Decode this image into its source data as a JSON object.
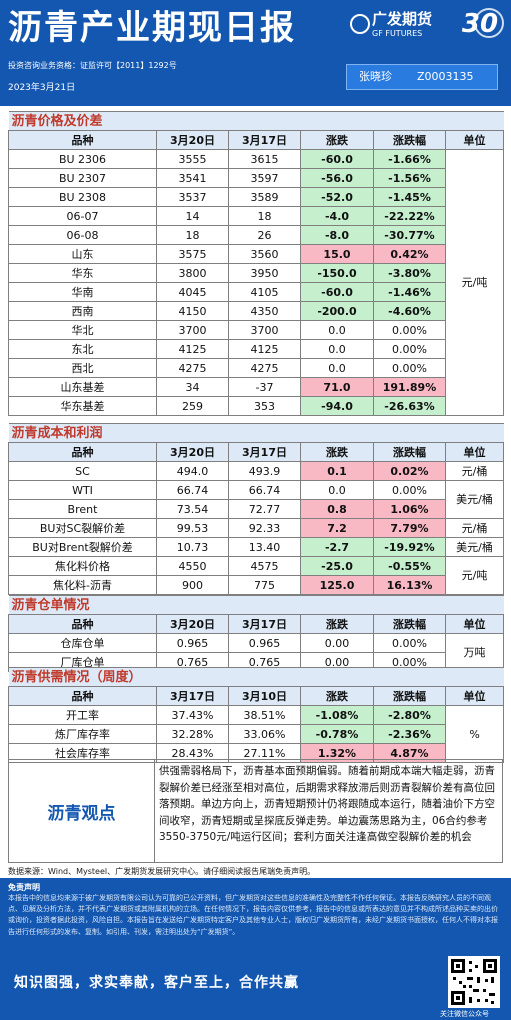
{
  "header": {
    "title": "沥青产业期现日报",
    "logo_cn": "广发期货",
    "logo_en": "GF FUTURES",
    "anniversary": "30",
    "license": "投资咨询业务资格：证监许可【2011】1292号",
    "date": "2023年3月21日",
    "analyst_name": "张晓珍",
    "analyst_id": "Z0003135"
  },
  "colors": {
    "brand": "#1357b0",
    "section_title": "#c0392b",
    "down_fill": "#c6efce",
    "up_fill": "#f8b8c4"
  },
  "columns": {
    "name": "品种",
    "change": "涨跌",
    "pct": "涨跌幅",
    "unit": "单位"
  },
  "price": {
    "title": "沥青价格及价差",
    "d1": "3月20日",
    "d2": "3月17日",
    "rows": [
      [
        "BU 2306",
        "3555",
        "3615",
        "-60.0",
        "-1.66%"
      ],
      [
        "BU 2307",
        "3541",
        "3597",
        "-56.0",
        "-1.56%"
      ],
      [
        "BU 2308",
        "3537",
        "3589",
        "-52.0",
        "-1.45%"
      ],
      [
        "06-07",
        "14",
        "18",
        "-4.0",
        "-22.22%"
      ],
      [
        "06-08",
        "18",
        "26",
        "-8.0",
        "-30.77%"
      ],
      [
        "山东",
        "3575",
        "3560",
        "15.0",
        "0.42%"
      ],
      [
        "华东",
        "3800",
        "3950",
        "-150.0",
        "-3.80%"
      ],
      [
        "华南",
        "4045",
        "4105",
        "-60.0",
        "-1.46%"
      ],
      [
        "西南",
        "4150",
        "4350",
        "-200.0",
        "-4.60%"
      ],
      [
        "华北",
        "3700",
        "3700",
        "0.0",
        "0.00%"
      ],
      [
        "东北",
        "4125",
        "4125",
        "0.0",
        "0.00%"
      ],
      [
        "西北",
        "4275",
        "4275",
        "0.0",
        "0.00%"
      ],
      [
        "山东基差",
        "34",
        "-37",
        "71.0",
        "191.89%"
      ],
      [
        "华东基差",
        "259",
        "353",
        "-94.0",
        "-26.63%"
      ]
    ],
    "unit": "元/吨"
  },
  "cost": {
    "title": "沥青成本和利润",
    "d1": "3月20日",
    "d2": "3月17日",
    "rows": [
      [
        "SC",
        "494.0",
        "493.9",
        "0.1",
        "0.02%"
      ],
      [
        "WTI",
        "66.74",
        "66.74",
        "0.0",
        "0.00%"
      ],
      [
        "Brent",
        "73.54",
        "72.77",
        "0.8",
        "1.06%"
      ],
      [
        "BU对SC裂解价差",
        "99.53",
        "92.33",
        "7.2",
        "7.79%"
      ],
      [
        "BU对Brent裂解价差",
        "10.73",
        "13.40",
        "-2.7",
        "-19.92%"
      ],
      [
        "焦化料价格",
        "4550",
        "4575",
        "-25.0",
        "-0.55%"
      ],
      [
        "焦化料-沥青",
        "900",
        "775",
        "125.0",
        "16.13%"
      ]
    ],
    "units": [
      "元/桶",
      "美元/桶",
      "元/桶",
      "美元/桶",
      "元/吨"
    ]
  },
  "warehouse": {
    "title": "沥青仓单情况",
    "d1": "3月20日",
    "d2": "3月17日",
    "rows": [
      [
        "仓库仓单",
        "0.965",
        "0.965",
        "0.00",
        "0.00%"
      ],
      [
        "厂库仓单",
        "0.765",
        "0.765",
        "0.00",
        "0.00%"
      ]
    ],
    "unit": "万吨"
  },
  "supply": {
    "title": "沥青供需情况（周度）",
    "d1": "3月17日",
    "d2": "3月10日",
    "rows": [
      [
        "开工率",
        "37.43%",
        "38.51%",
        "-1.08%",
        "-2.80%"
      ],
      [
        "炼厂库存率",
        "32.28%",
        "33.06%",
        "-0.78%",
        "-2.36%"
      ],
      [
        "社会库存率",
        "28.43%",
        "27.11%",
        "1.32%",
        "4.87%"
      ]
    ],
    "unit": "%"
  },
  "view": {
    "label": "沥青观点",
    "text": "供强需弱格局下，沥青基本面预期偏弱。随着前期成本端大幅走弱，沥青裂解价差已经涨至相对高位，后期需求释放滞后则沥青裂解价差有高位回落预期。单边方向上，沥青短期预计仍将跟随成本运行，随着油价下方空间收窄，沥青短期或呈探底反弹走势。单边震荡思路为主，06合约参考3550-3750元/吨运行区间；套利方面关注逢高做空裂解价差的机会"
  },
  "source": "数据来源：Wind、Mysteel、广发期货发展研究中心。请仔细阅读报告尾端免责声明。",
  "disclaimer": {
    "title": "免责声明",
    "text": "本报告中的信息均来源于被广发期货有限公司认为可靠的已公开资料，但广发期货对这些信息的准确性及完整性不作任何保证。本报告反映研究人员的不同观点、见解及分析方法，并不代表广发期货或其附属机构的立场。在任何情况下，报告内容仅供参考，报告中的信息或所表达的意见并不构成所述品种买卖的出价或询价，投资者据此投资，风险自担。本报告旨在发送给广发期货特定客户及其他专业人士，版权归广发期货所有，未经广发期货书面授权，任何人不得对本报告进行任何形式的发布、复制。如引用、刊发，需注明出处为“广发期货”。"
  },
  "footer": {
    "slogan": "知识图强，求实奉献，客户至上，合作共赢",
    "qr_caption": "关注微信公众号"
  }
}
